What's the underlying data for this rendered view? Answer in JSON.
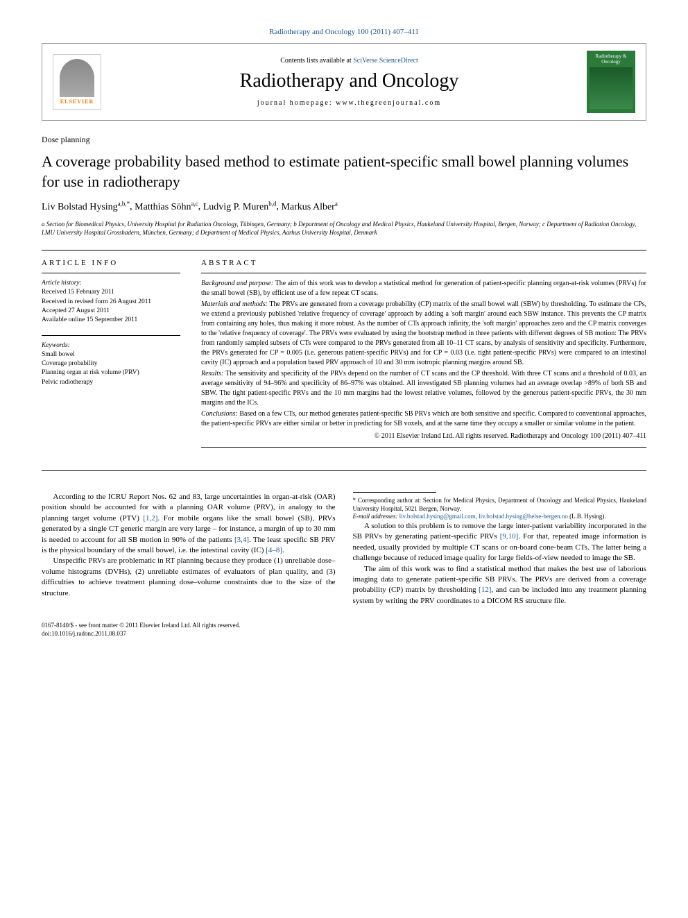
{
  "header": {
    "citation_link": "Radiotherapy and Oncology 100 (2011) 407–411",
    "contents_prefix": "Contents lists available at ",
    "contents_link": "SciVerse ScienceDirect",
    "journal_title": "Radiotherapy and Oncology",
    "homepage_prefix": "journal homepage: ",
    "homepage_url": "www.thegreenjournal.com",
    "publisher_logo_text": "ELSEVIER",
    "cover_label": "Radiotherapy & Oncology"
  },
  "section_label": "Dose planning",
  "title": "A coverage probability based method to estimate patient-specific small bowel planning volumes for use in radiotherapy",
  "authors_html": [
    {
      "name": "Liv Bolstad Hysing",
      "sup": "a,b,*"
    },
    {
      "name": "Matthias Söhn",
      "sup": "a,c"
    },
    {
      "name": "Ludvig P. Muren",
      "sup": "b,d"
    },
    {
      "name": "Markus Alber",
      "sup": "a"
    }
  ],
  "affiliations": "a Section for Biomedical Physics, University Hospital for Radiation Oncology, Tübingen, Germany; b Department of Oncology and Medical Physics, Haukeland University Hospital, Bergen, Norway; c Department of Radiation Oncology, LMU University Hospital Grosshadern, München, Germany; d Department of Medical Physics, Aarhus University Hospital, Denmark",
  "article_info": {
    "heading": "article info",
    "history_label": "Article history:",
    "history": [
      "Received 15 February 2011",
      "Received in revised form 26 August 2011",
      "Accepted 27 August 2011",
      "Available online 15 September 2011"
    ],
    "keywords_label": "Keywords:",
    "keywords": [
      "Small bowel",
      "Coverage probability",
      "Planning organ at risk volume (PRV)",
      "Pelvic radiotherapy"
    ]
  },
  "abstract": {
    "heading": "abstract",
    "sections": [
      {
        "label": "Background and purpose:",
        "text": "The aim of this work was to develop a statistical method for generation of patient-specific planning organ-at-risk volumes (PRVs) for the small bowel (SB), by efficient use of a few repeat CT scans."
      },
      {
        "label": "Materials and methods:",
        "text": "The PRVs are generated from a coverage probability (CP) matrix of the small bowel wall (SBW) by thresholding. To estimate the CPs, we extend a previously published 'relative frequency of coverage' approach by adding a 'soft margin' around each SBW instance. This prevents the CP matrix from containing any holes, thus making it more robust. As the number of CTs approach infinity, the 'soft margin' approaches zero and the CP matrix converges to the 'relative frequency of coverage'. The PRVs were evaluated by using the bootstrap method in three patients with different degrees of SB motion: The PRVs from randomly sampled subsets of CTs were compared to the PRVs generated from all 10–11 CT scans, by analysis of sensitivity and specificity. Furthermore, the PRVs generated for CP = 0.005 (i.e. generous patient-specific PRVs) and for CP = 0.03 (i.e. tight patient-specific PRVs) were compared to an intestinal cavity (IC) approach and a population based PRV approach of 10 and 30 mm isotropic planning margins around SB."
      },
      {
        "label": "Results:",
        "text": "The sensitivity and specificity of the PRVs depend on the number of CT scans and the CP threshold. With three CT scans and a threshold of 0.03, an average sensitivity of 94–96% and specificity of 86–97% was obtained. All investigated SB planning volumes had an average overlap >89% of both SB and SBW. The tight patient-specific PRVs and the 10 mm margins had the lowest relative volumes, followed by the generous patient-specific PRVs, the 30 mm margins and the ICs."
      },
      {
        "label": "Conclusions:",
        "text": "Based on a few CTs, our method generates patient-specific SB PRVs which are both sensitive and specific. Compared to conventional approaches, the patient-specific PRVs are either similar or better in predicting for SB voxels, and at the same time they occupy a smaller or similar volume in the patient."
      }
    ],
    "copyright": "© 2011 Elsevier Ireland Ltd. All rights reserved. Radiotherapy and Oncology 100 (2011) 407–411"
  },
  "body_paragraphs": [
    "According to the ICRU Report Nos. 62 and 83, large uncertainties in organ-at-risk (OAR) position should be accounted for with a planning OAR volume (PRV), in analogy to the planning target volume (PTV) [1,2]. For mobile organs like the small bowel (SB), PRVs generated by a single CT generic margin are very large – for instance, a margin of up to 30 mm is needed to account for all SB motion in 90% of the patients [3,4]. The least specific SB PRV is the physical boundary of the small bowel, i.e. the intestinal cavity (IC) [4–8].",
    "Unspecific PRVs are problematic in RT planning because they produce (1) unreliable dose–volume histograms (DVHs), (2) unreliable estimates of evaluators of plan quality, and (3) difficulties to achieve treatment planning dose–volume constraints due to the size of the structure.",
    "A solution to this problem is to remove the large inter-patient variability incorporated in the SB PRVs by generating patient-specific PRVs [9,10]. For that, repeated image information is needed, usually provided by multiple CT scans or on-board cone-beam CTs. The latter being a challenge because of reduced image quality for large fields-of-view needed to image the SB.",
    "The aim of this work was to find a statistical method that makes the best use of laborious imaging data to generate patient-specific SB PRVs. The PRVs are derived from a coverage probability (CP) matrix by thresholding [12], and can be included into any treatment planning system by writing the PRV coordinates to a DICOM RS structure file."
  ],
  "refs": [
    "[1,2]",
    "[3,4]",
    "[4–8]",
    "[9,10]",
    "[12]"
  ],
  "footnote": {
    "corr": "* Corresponding author at: Section for Medical Physics, Department of Oncology and Medical Physics, Haukeland University Hospital, 5021 Bergen, Norway.",
    "email_label": "E-mail addresses:",
    "emails": "liv.bolstad.hysing@gmail.com, liv.bolstad.hysing@helse-bergen.no",
    "email_person": "(L.B. Hysing)."
  },
  "footer": {
    "issn": "0167-8140/$ - see front matter © 2011 Elsevier Ireland Ltd. All rights reserved.",
    "doi": "doi:10.1016/j.radonc.2011.08.037"
  },
  "colors": {
    "link": "#1a5490",
    "elsevier_orange": "#f47c00",
    "cover_green": "#2a7a3a"
  }
}
